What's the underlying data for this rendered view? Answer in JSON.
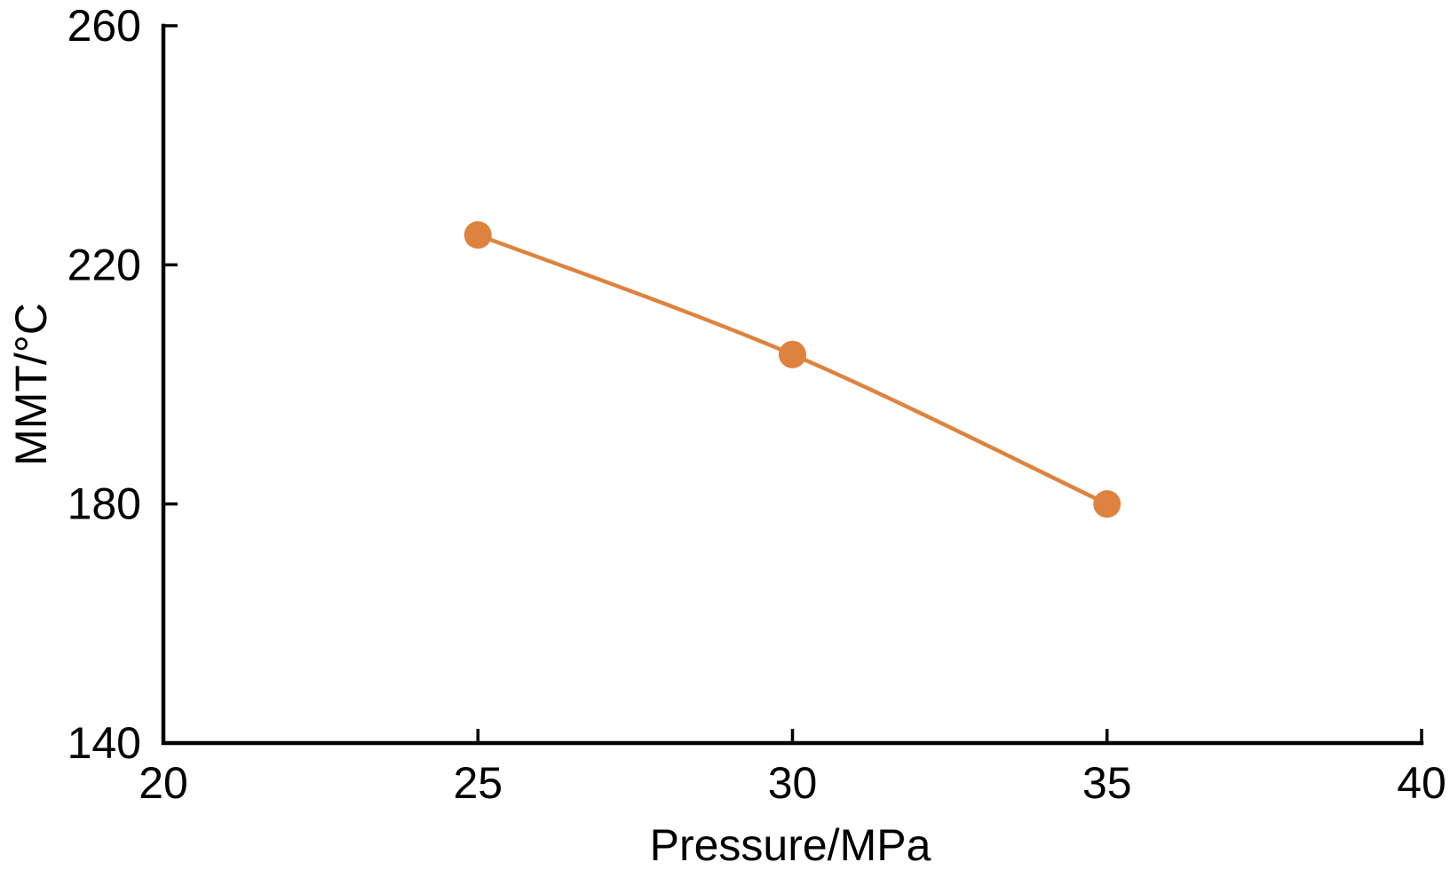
{
  "chart_data": {
    "type": "line",
    "title": "",
    "xlabel": "Pressure/MPa",
    "ylabel": "MMT/°C",
    "series": [
      {
        "x": [
          25,
          30,
          35
        ],
        "y": [
          225,
          205,
          180
        ],
        "color": "#DE833F",
        "marker": "circle",
        "smooth": true
      }
    ],
    "xlim": [
      20,
      40
    ],
    "ylim": [
      140,
      260
    ],
    "x_ticks": [
      20,
      25,
      30,
      35,
      40
    ],
    "y_ticks": [
      140,
      180,
      220,
      260
    ],
    "x_tick_labels": [
      "20",
      "25",
      "30",
      "35",
      "40"
    ],
    "y_tick_labels": [
      "140",
      "180",
      "220",
      "260"
    ],
    "grid": false,
    "legend_position": "none",
    "axis_color": "#000000",
    "background_color": "#FFFFFF"
  }
}
